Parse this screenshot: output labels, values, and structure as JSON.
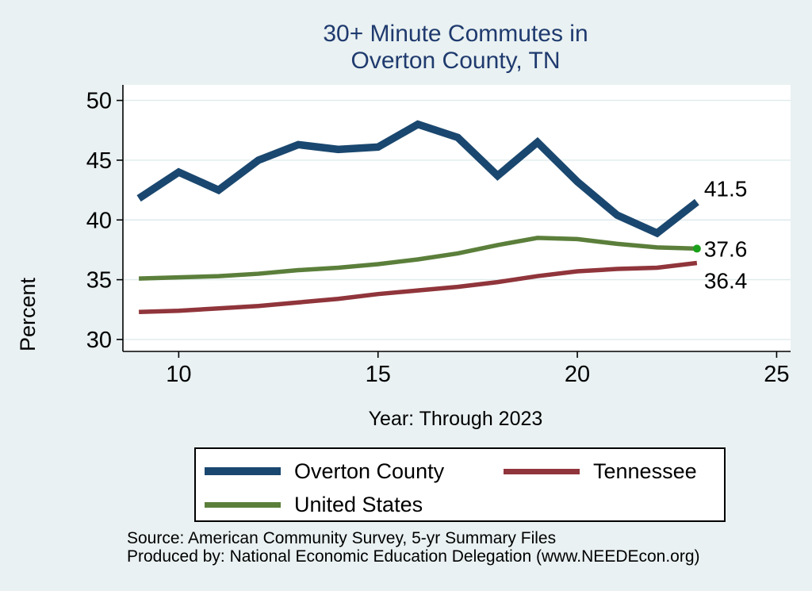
{
  "title": {
    "line1": "30+ Minute Commutes in",
    "line2": "Overton County, TN"
  },
  "colors": {
    "page_background": "#e9f1f2",
    "plot_background": "#ffffff",
    "title_text": "#1f3a6e",
    "gridline": "#dfeaec",
    "axis": "#000000",
    "overton_county_line": "#1a476f",
    "tennessee_line": "#90353b",
    "united_states_line": "#5b7f3b",
    "end_marker_green": "#1ca01c"
  },
  "chart_data": {
    "type": "line",
    "x": [
      9,
      10,
      11,
      12,
      13,
      14,
      15,
      16,
      17,
      18,
      19,
      20,
      21,
      22,
      23
    ],
    "series": [
      {
        "name": "Tennessee",
        "color": "#90353b",
        "line_width": 5.5,
        "values": [
          32.3,
          32.4,
          32.6,
          32.8,
          33.1,
          33.4,
          33.8,
          34.1,
          34.4,
          34.8,
          35.3,
          35.7,
          35.9,
          36.0,
          36.4
        ],
        "end_label": "36.4",
        "end_marker": null
      },
      {
        "name": "United States",
        "color": "#5b7f3b",
        "line_width": 5.5,
        "values": [
          35.1,
          35.2,
          35.3,
          35.5,
          35.8,
          36.0,
          36.3,
          36.7,
          37.2,
          37.9,
          38.5,
          38.4,
          38.0,
          37.7,
          37.6
        ],
        "end_label": "37.6",
        "end_marker": "#1ca01c"
      },
      {
        "name": "Overton County",
        "color": "#1a476f",
        "line_width": 9.5,
        "values": [
          41.8,
          44.0,
          42.5,
          45.0,
          46.3,
          45.9,
          46.1,
          48.0,
          46.9,
          43.7,
          46.5,
          43.2,
          40.4,
          38.9,
          41.5
        ],
        "end_label": "41.5",
        "end_marker": null
      }
    ],
    "title": "30+ Minute Commutes in Overton County, TN",
    "xlabel": "Year: Through 2023",
    "ylabel": "Percent",
    "xticks": [
      10,
      15,
      20,
      25
    ],
    "yticks": [
      30,
      35,
      40,
      45,
      50
    ],
    "xlim": [
      8.6,
      25.35
    ],
    "ylim": [
      29.0,
      51.3
    ],
    "grid": true,
    "legend_position": "bottom"
  },
  "legend": {
    "items": [
      {
        "label": "Overton County"
      },
      {
        "label": "Tennessee"
      },
      {
        "label": "United States"
      }
    ]
  },
  "footer": {
    "line1": "Source: American Community Survey, 5-yr Summary Files",
    "line2": "Produced by: National Economic Education Delegation (www.NEEDEcon.org)"
  }
}
